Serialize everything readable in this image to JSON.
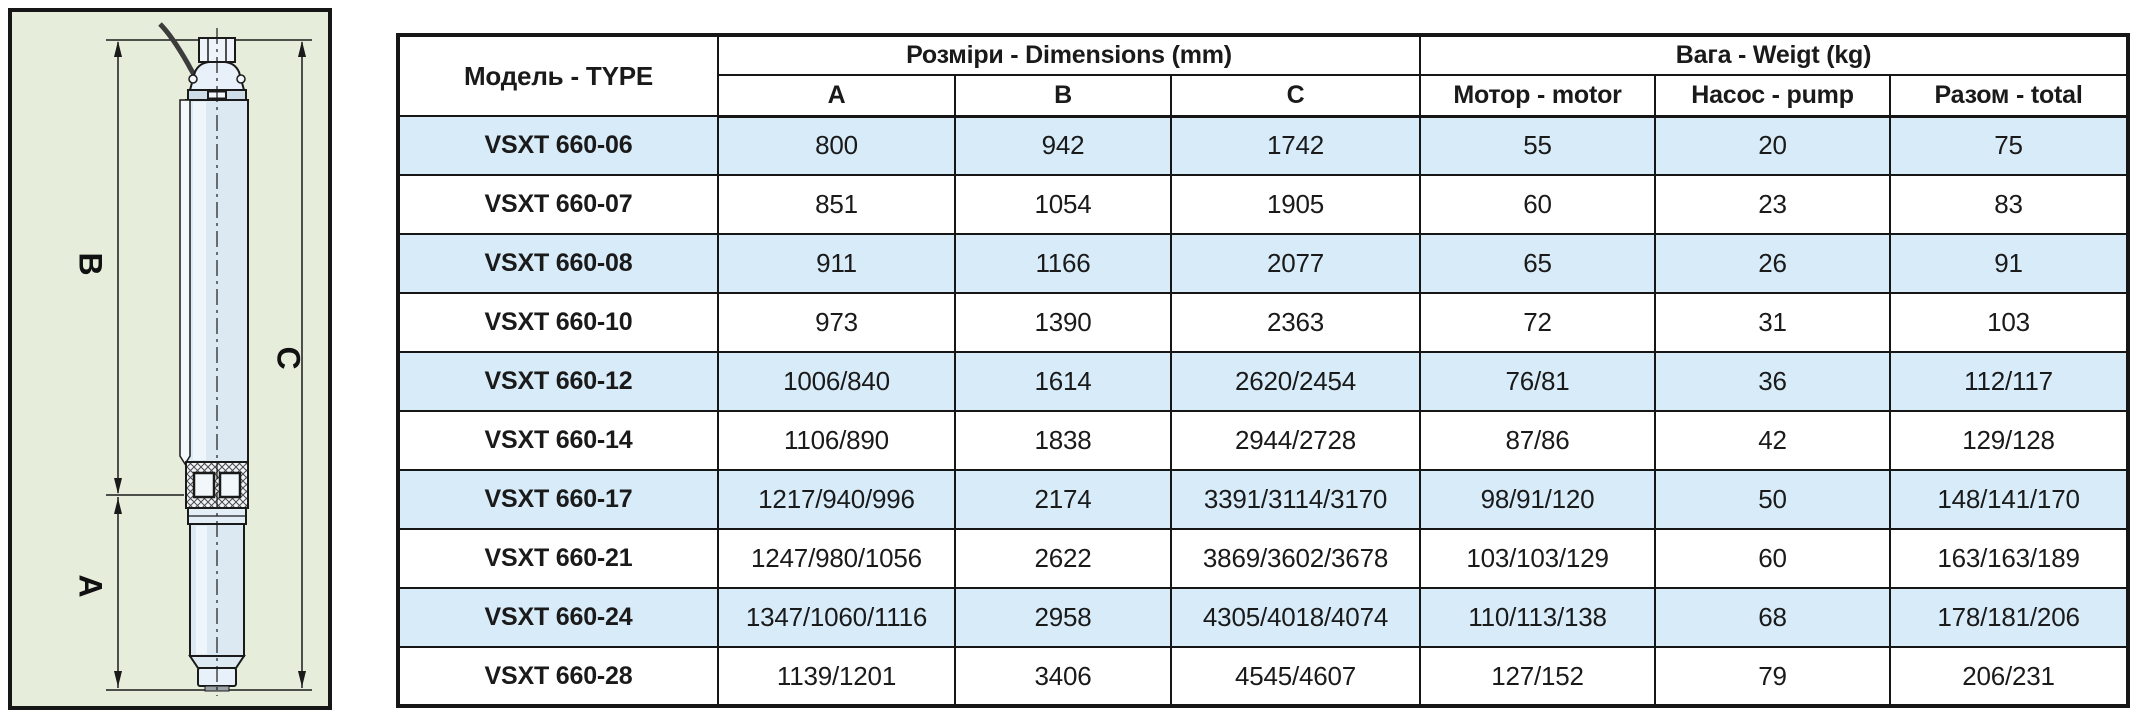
{
  "diagram": {
    "dimension_labels": {
      "a": "A",
      "b": "B",
      "c": "C"
    }
  },
  "table": {
    "headers": {
      "model": "Модель - TYPE",
      "dimensions_group": "Розміри - Dimensions (mm)",
      "weight_group": "Вага - Weigt (kg)",
      "a": "A",
      "b": "B",
      "c": "C",
      "motor": "Мотор - motor",
      "pump": "Насос - pump",
      "total": "Разом - total"
    },
    "rows": [
      {
        "model": "VSXT 660-06",
        "a": "800",
        "b": "942",
        "c": "1742",
        "motor": "55",
        "pump": "20",
        "total": "75"
      },
      {
        "model": "VSXT 660-07",
        "a": "851",
        "b": "1054",
        "c": "1905",
        "motor": "60",
        "pump": "23",
        "total": "83"
      },
      {
        "model": "VSXT 660-08",
        "a": "911",
        "b": "1166",
        "c": "2077",
        "motor": "65",
        "pump": "26",
        "total": "91"
      },
      {
        "model": "VSXT 660-10",
        "a": "973",
        "b": "1390",
        "c": "2363",
        "motor": "72",
        "pump": "31",
        "total": "103"
      },
      {
        "model": "VSXT 660-12",
        "a": "1006/840",
        "b": "1614",
        "c": "2620/2454",
        "motor": "76/81",
        "pump": "36",
        "total": "112/117"
      },
      {
        "model": "VSXT 660-14",
        "a": "1106/890",
        "b": "1838",
        "c": "2944/2728",
        "motor": "87/86",
        "pump": "42",
        "total": "129/128"
      },
      {
        "model": "VSXT 660-17",
        "a": "1217/940/996",
        "b": "2174",
        "c": "3391/3114/3170",
        "motor": "98/91/120",
        "pump": "50",
        "total": "148/141/170"
      },
      {
        "model": "VSXT 660-21",
        "a": "1247/980/1056",
        "b": "2622",
        "c": "3869/3602/3678",
        "motor": "103/103/129",
        "pump": "60",
        "total": "163/163/189"
      },
      {
        "model": "VSXT 660-24",
        "a": "1347/1060/1116",
        "b": "2958",
        "c": "4305/4018/4074",
        "motor": "110/113/138",
        "pump": "68",
        "total": "178/181/206"
      },
      {
        "model": "VSXT 660-28",
        "a": "1139/1201",
        "b": "3406",
        "c": "4545/4607",
        "motor": "127/152",
        "pump": "79",
        "total": "206/231"
      }
    ]
  },
  "colors": {
    "row_alt_bg": "#d7ebf8",
    "row_bg": "#ffffff",
    "border": "#161616",
    "panel_bg": "#e6eedb",
    "pump_body_fill": "#dce9f3"
  }
}
